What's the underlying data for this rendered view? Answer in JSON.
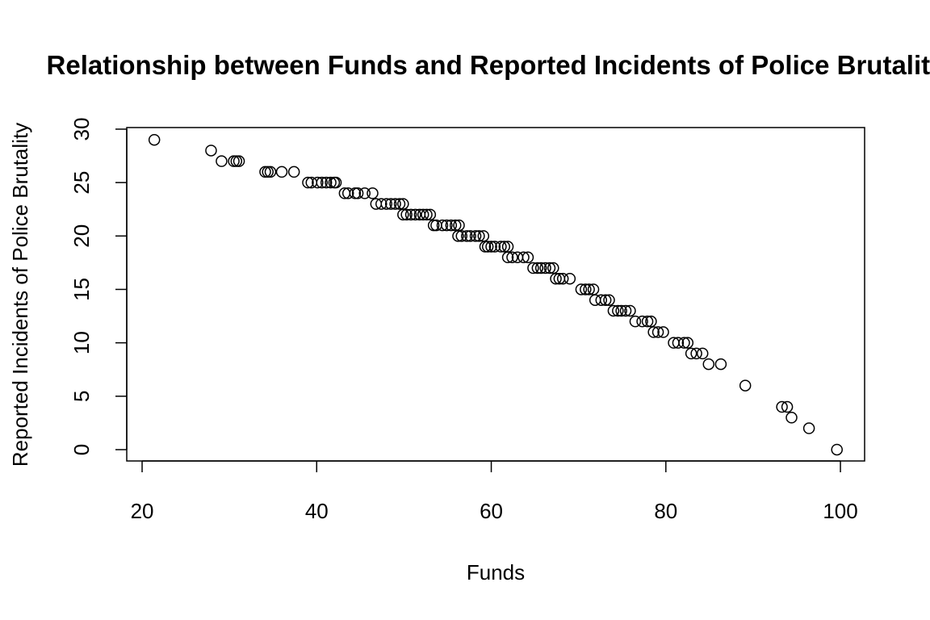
{
  "chart_data": {
    "type": "scatter",
    "title": "Relationship between Funds and Reported Incidents of Police Brutality",
    "x_label": "Funds",
    "y_label": "Reported Incidents of Police Brutality",
    "x": [
      21.4,
      27.9,
      29.1,
      30.5,
      30.8,
      31.1,
      34.1,
      34.4,
      34.7,
      36.0,
      37.4,
      39.0,
      39.4,
      40.1,
      40.6,
      41.1,
      41.6,
      42.0,
      42.2,
      43.2,
      43.6,
      44.4,
      44.7,
      45.5,
      46.4,
      46.8,
      47.4,
      48.0,
      48.5,
      49.0,
      49.5,
      49.9,
      49.9,
      50.3,
      50.8,
      51.3,
      51.8,
      52.2,
      52.6,
      53.0,
      53.4,
      53.7,
      54.4,
      54.9,
      55.4,
      55.9,
      56.3,
      56.2,
      56.6,
      57.2,
      57.6,
      58.2,
      58.6,
      59.1,
      59.3,
      59.6,
      60.0,
      60.4,
      61.1,
      61.5,
      61.9,
      61.9,
      62.4,
      63.0,
      63.7,
      64.2,
      64.8,
      65.3,
      65.7,
      66.2,
      66.7,
      67.1,
      67.4,
      67.8,
      68.2,
      69.0,
      70.3,
      70.8,
      71.2,
      71.7,
      71.9,
      72.6,
      73.1,
      73.5,
      74.0,
      74.5,
      74.9,
      75.4,
      75.9,
      76.5,
      77.3,
      77.9,
      78.3,
      78.6,
      79.1,
      79.7,
      80.9,
      81.4,
      82.1,
      82.5,
      82.9,
      83.5,
      84.2,
      84.9,
      86.3,
      89.1,
      93.3,
      93.9,
      94.4,
      96.4,
      99.6
    ],
    "y": [
      29,
      28,
      27,
      27,
      27,
      27,
      26,
      26,
      26,
      26,
      26,
      25,
      25,
      25,
      25,
      25,
      25,
      25,
      25,
      24,
      24,
      24,
      24,
      24,
      24,
      23,
      23,
      23,
      23,
      23,
      23,
      23,
      22,
      22,
      22,
      22,
      22,
      22,
      22,
      22,
      21,
      21,
      21,
      21,
      21,
      21,
      21,
      20,
      20,
      20,
      20,
      20,
      20,
      20,
      19,
      19,
      19,
      19,
      19,
      19,
      19,
      18,
      18,
      18,
      18,
      18,
      17,
      17,
      17,
      17,
      17,
      17,
      16,
      16,
      16,
      16,
      15,
      15,
      15,
      15,
      14,
      14,
      14,
      14,
      13,
      13,
      13,
      13,
      13,
      12,
      12,
      12,
      12,
      11,
      11,
      11,
      10,
      10,
      10,
      10,
      9,
      9,
      9,
      8,
      8,
      6,
      4,
      4,
      3,
      2,
      0
    ],
    "color": "#000000",
    "xlim": [
      18.24,
      102.77
    ],
    "ylim": [
      -1.06,
      30.15
    ],
    "xticks": [
      20,
      40,
      60,
      80,
      100
    ],
    "yticks": [
      0,
      5,
      10,
      15,
      20,
      25,
      30
    ]
  }
}
